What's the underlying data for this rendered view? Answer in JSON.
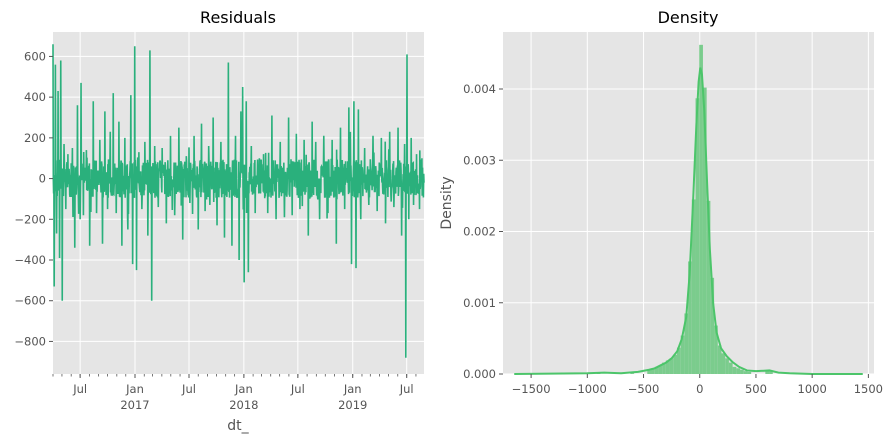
{
  "chart_data": [
    {
      "type": "line",
      "title": "Residuals",
      "xlabel": "dt_",
      "ylabel": "",
      "color": "#2ab07c",
      "grid": true,
      "x_range": [
        "2016-04-01",
        "2019-08-28"
      ],
      "ylim": [
        -960,
        720
      ],
      "yticks": [
        -800,
        -600,
        -400,
        -200,
        0,
        200,
        400,
        600
      ],
      "xticks": [
        {
          "date": "2016-07-01",
          "label": "Jul",
          "sub": ""
        },
        {
          "date": "2017-01-01",
          "label": "Jan",
          "sub": "2017"
        },
        {
          "date": "2017-07-01",
          "label": "Jul",
          "sub": ""
        },
        {
          "date": "2018-01-01",
          "label": "Jan",
          "sub": "2018"
        },
        {
          "date": "2018-07-01",
          "label": "Jul",
          "sub": ""
        },
        {
          "date": "2019-01-01",
          "label": "Jan",
          "sub": "2019"
        },
        {
          "date": "2019-07-01",
          "label": "Jul",
          "sub": ""
        }
      ],
      "series": [
        {
          "values_approx": [
            [
              "2016-04-01",
              660
            ],
            [
              "2016-04-05",
              -530
            ],
            [
              "2016-04-09",
              560
            ],
            [
              "2016-04-13",
              -270
            ],
            [
              "2016-04-18",
              430
            ],
            [
              "2016-04-23",
              -390
            ],
            [
              "2016-04-27",
              580
            ],
            [
              "2016-05-02",
              -600
            ],
            [
              "2016-05-08",
              170
            ],
            [
              "2016-05-14",
              -150
            ],
            [
              "2016-05-21",
              120
            ],
            [
              "2016-05-28",
              -90
            ],
            [
              "2016-06-05",
              150
            ],
            [
              "2016-06-13",
              -340
            ],
            [
              "2016-06-22",
              360
            ],
            [
              "2016-07-01",
              -200
            ],
            [
              "2016-07-04",
              470
            ],
            [
              "2016-07-12",
              -180
            ],
            [
              "2016-07-22",
              140
            ],
            [
              "2016-08-02",
              -330
            ],
            [
              "2016-08-14",
              380
            ],
            [
              "2016-08-25",
              -170
            ],
            [
              "2016-09-05",
              190
            ],
            [
              "2016-09-14",
              -320
            ],
            [
              "2016-09-22",
              330
            ],
            [
              "2016-10-01",
              -150
            ],
            [
              "2016-10-10",
              230
            ],
            [
              "2016-10-20",
              420
            ],
            [
              "2016-10-30",
              -170
            ],
            [
              "2016-11-08",
              280
            ],
            [
              "2016-11-18",
              -330
            ],
            [
              "2016-11-28",
              200
            ],
            [
              "2016-12-08",
              -250
            ],
            [
              "2016-12-18",
              410
            ],
            [
              "2016-12-24",
              -420
            ],
            [
              "2016-12-31",
              650
            ],
            [
              "2017-01-06",
              -450
            ],
            [
              "2017-01-14",
              130
            ],
            [
              "2017-01-24",
              -150
            ],
            [
              "2017-02-03",
              180
            ],
            [
              "2017-02-13",
              -280
            ],
            [
              "2017-02-20",
              630
            ],
            [
              "2017-02-26",
              -600
            ],
            [
              "2017-03-08",
              160
            ],
            [
              "2017-03-20",
              -140
            ],
            [
              "2017-04-02",
              150
            ],
            [
              "2017-04-16",
              -220
            ],
            [
              "2017-04-30",
              210
            ],
            [
              "2017-05-14",
              -180
            ],
            [
              "2017-05-28",
              250
            ],
            [
              "2017-06-10",
              -300
            ],
            [
              "2017-06-22",
              110
            ],
            [
              "2017-07-04",
              -120
            ],
            [
              "2017-07-18",
              210
            ],
            [
              "2017-08-01",
              -250
            ],
            [
              "2017-08-12",
              270
            ],
            [
              "2017-08-24",
              -160
            ],
            [
              "2017-09-05",
              160
            ],
            [
              "2017-09-20",
              300
            ],
            [
              "2017-10-03",
              -230
            ],
            [
              "2017-10-16",
              180
            ],
            [
              "2017-10-28",
              -290
            ],
            [
              "2017-11-10",
              570
            ],
            [
              "2017-11-22",
              -330
            ],
            [
              "2017-12-04",
              210
            ],
            [
              "2017-12-16",
              -400
            ],
            [
              "2017-12-22",
              330
            ],
            [
              "2017-12-28",
              450
            ],
            [
              "2018-01-02",
              -510
            ],
            [
              "2018-01-09",
              380
            ],
            [
              "2018-01-16",
              -460
            ],
            [
              "2018-01-26",
              160
            ],
            [
              "2018-02-08",
              -170
            ],
            [
              "2018-02-22",
              100
            ],
            [
              "2018-03-08",
              120
            ],
            [
              "2018-03-22",
              -170
            ],
            [
              "2018-04-05",
              310
            ],
            [
              "2018-04-19",
              -200
            ],
            [
              "2018-05-03",
              180
            ],
            [
              "2018-05-17",
              -190
            ],
            [
              "2018-05-31",
              300
            ],
            [
              "2018-06-12",
              -180
            ],
            [
              "2018-06-26",
              220
            ],
            [
              "2018-07-08",
              -150
            ],
            [
              "2018-07-22",
              190
            ],
            [
              "2018-08-05",
              -280
            ],
            [
              "2018-08-18",
              280
            ],
            [
              "2018-08-30",
              180
            ],
            [
              "2018-09-12",
              -200
            ],
            [
              "2018-09-26",
              210
            ],
            [
              "2018-10-10",
              -170
            ],
            [
              "2018-10-24",
              190
            ],
            [
              "2018-11-07",
              -320
            ],
            [
              "2018-11-21",
              250
            ],
            [
              "2018-12-05",
              -150
            ],
            [
              "2018-12-19",
              350
            ],
            [
              "2018-12-28",
              -420
            ],
            [
              "2019-01-05",
              380
            ],
            [
              "2019-01-12",
              -440
            ],
            [
              "2019-01-20",
              340
            ],
            [
              "2019-01-28",
              -200
            ],
            [
              "2019-02-10",
              150
            ],
            [
              "2019-02-24",
              -130
            ],
            [
              "2019-03-10",
              210
            ],
            [
              "2019-03-24",
              -160
            ],
            [
              "2019-04-07",
              200
            ],
            [
              "2019-04-21",
              -220
            ],
            [
              "2019-05-05",
              230
            ],
            [
              "2019-05-19",
              -140
            ],
            [
              "2019-06-02",
              250
            ],
            [
              "2019-06-14",
              -280
            ],
            [
              "2019-06-24",
              170
            ],
            [
              "2019-06-28",
              -880
            ],
            [
              "2019-07-02",
              610
            ],
            [
              "2019-07-08",
              -200
            ],
            [
              "2019-07-16",
              200
            ],
            [
              "2019-07-24",
              -130
            ],
            [
              "2019-08-03",
              120
            ],
            [
              "2019-08-13",
              -150
            ],
            [
              "2019-08-21",
              100
            ],
            [
              "2019-08-28",
              -20
            ]
          ]
        }
      ]
    },
    {
      "type": "histogram+kde",
      "title": "Density",
      "xlabel": "",
      "ylabel": "Density",
      "grid": true,
      "bar_color": "#7bcc8d",
      "line_color": "#4cc56a",
      "xlim": [
        -1750,
        1550
      ],
      "ylim": [
        0,
        0.0048
      ],
      "xticks": [
        -1500,
        -1000,
        -500,
        0,
        500,
        1000,
        1500
      ],
      "yticks": [
        0.0,
        0.001,
        0.002,
        0.003,
        0.004
      ],
      "ytick_labels": [
        "0.000",
        "0.001",
        "0.002",
        "0.003",
        "0.004"
      ],
      "bin_width": 33,
      "bins": [
        {
          "x": -900,
          "density": 1e-05
        },
        {
          "x": -600,
          "density": 1e-05
        },
        {
          "x": -450,
          "density": 5e-05
        },
        {
          "x": -417,
          "density": 7e-05
        },
        {
          "x": -384,
          "density": 0.0001
        },
        {
          "x": -351,
          "density": 0.00012
        },
        {
          "x": -318,
          "density": 0.00016
        },
        {
          "x": -285,
          "density": 0.00019
        },
        {
          "x": -252,
          "density": 0.00022
        },
        {
          "x": -219,
          "density": 0.00027
        },
        {
          "x": -186,
          "density": 0.00037
        },
        {
          "x": -153,
          "density": 0.00054
        },
        {
          "x": -120,
          "density": 0.00085
        },
        {
          "x": -87,
          "density": 0.00158
        },
        {
          "x": -54,
          "density": 0.00245
        },
        {
          "x": -21,
          "density": 0.00387
        },
        {
          "x": 12,
          "density": 0.00462
        },
        {
          "x": 45,
          "density": 0.00402
        },
        {
          "x": 78,
          "density": 0.00243
        },
        {
          "x": 111,
          "density": 0.00135
        },
        {
          "x": 144,
          "density": 0.00068
        },
        {
          "x": 177,
          "density": 0.0004
        },
        {
          "x": 210,
          "density": 0.00029
        },
        {
          "x": 243,
          "density": 0.00022
        },
        {
          "x": 276,
          "density": 0.00016
        },
        {
          "x": 309,
          "density": 0.0001
        },
        {
          "x": 342,
          "density": 8e-05
        },
        {
          "x": 375,
          "density": 6e-05
        },
        {
          "x": 408,
          "density": 4e-05
        },
        {
          "x": 441,
          "density": 3e-05
        },
        {
          "x": 600,
          "density": 5e-05
        },
        {
          "x": 633,
          "density": 4e-05
        }
      ],
      "kde": [
        [
          -1650,
          0.0
        ],
        [
          -1000,
          1e-05
        ],
        [
          -850,
          2e-05
        ],
        [
          -700,
          1e-05
        ],
        [
          -550,
          3e-05
        ],
        [
          -450,
          6e-05
        ],
        [
          -400,
          8e-05
        ],
        [
          -350,
          0.00012
        ],
        [
          -300,
          0.00016
        ],
        [
          -250,
          0.00022
        ],
        [
          -200,
          0.00032
        ],
        [
          -160,
          0.00049
        ],
        [
          -120,
          0.0008
        ],
        [
          -90,
          0.0014
        ],
        [
          -60,
          0.0024
        ],
        [
          -30,
          0.0035
        ],
        [
          -10,
          0.0041
        ],
        [
          5,
          0.0043
        ],
        [
          20,
          0.0042
        ],
        [
          40,
          0.0037
        ],
        [
          65,
          0.0027
        ],
        [
          90,
          0.00175
        ],
        [
          120,
          0.00098
        ],
        [
          150,
          0.00058
        ],
        [
          190,
          0.00036
        ],
        [
          240,
          0.00025
        ],
        [
          290,
          0.00017
        ],
        [
          350,
          0.0001
        ],
        [
          420,
          5e-05
        ],
        [
          500,
          4e-05
        ],
        [
          620,
          5e-05
        ],
        [
          700,
          2e-05
        ],
        [
          800,
          1e-05
        ],
        [
          1000,
          0.0
        ],
        [
          1450,
          0.0
        ]
      ]
    }
  ]
}
